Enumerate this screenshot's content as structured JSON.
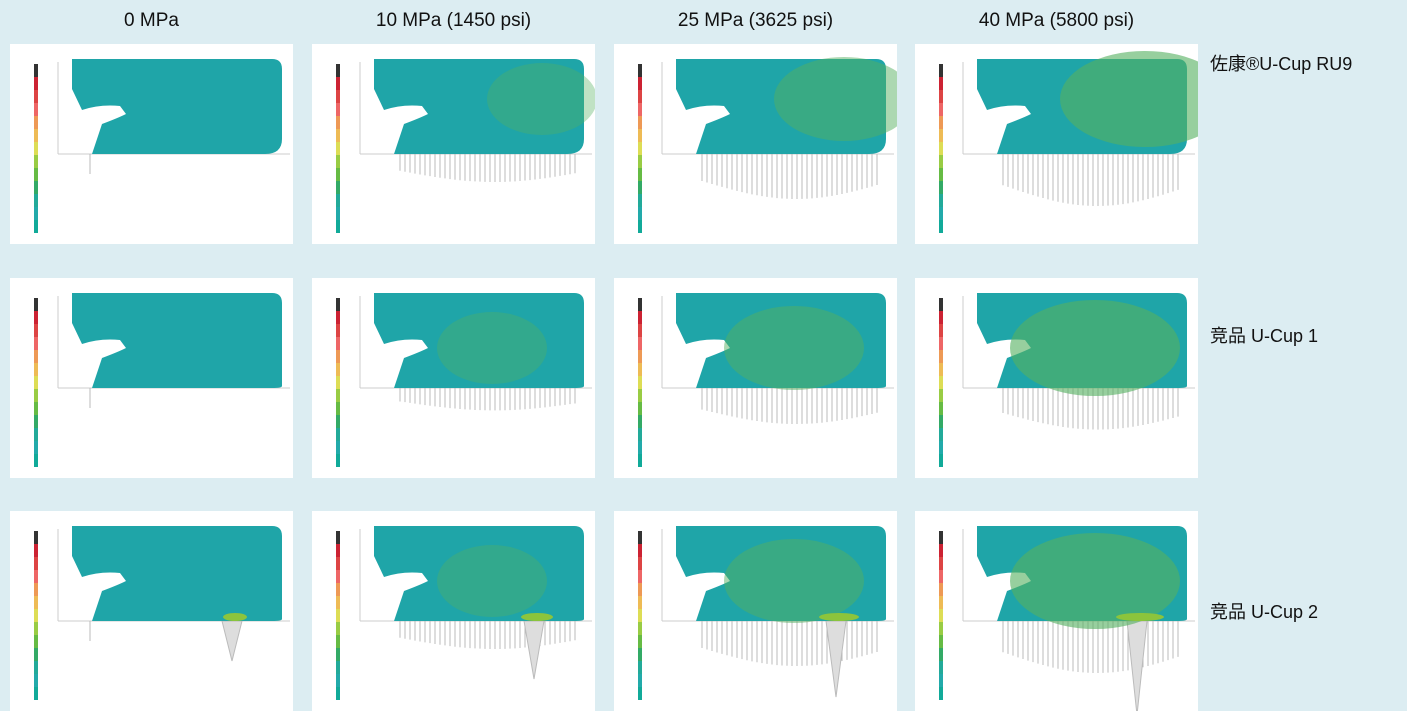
{
  "column_headers": [
    "0 MPa",
    "10 MPa (1450 psi)",
    "25 MPa (3625 psi)",
    "40 MPa (5800 psi)"
  ],
  "row_labels": [
    "佐康®U-Cup RU9",
    "竞品 U-Cup 1",
    "竞品 U-Cup 2"
  ]
}
